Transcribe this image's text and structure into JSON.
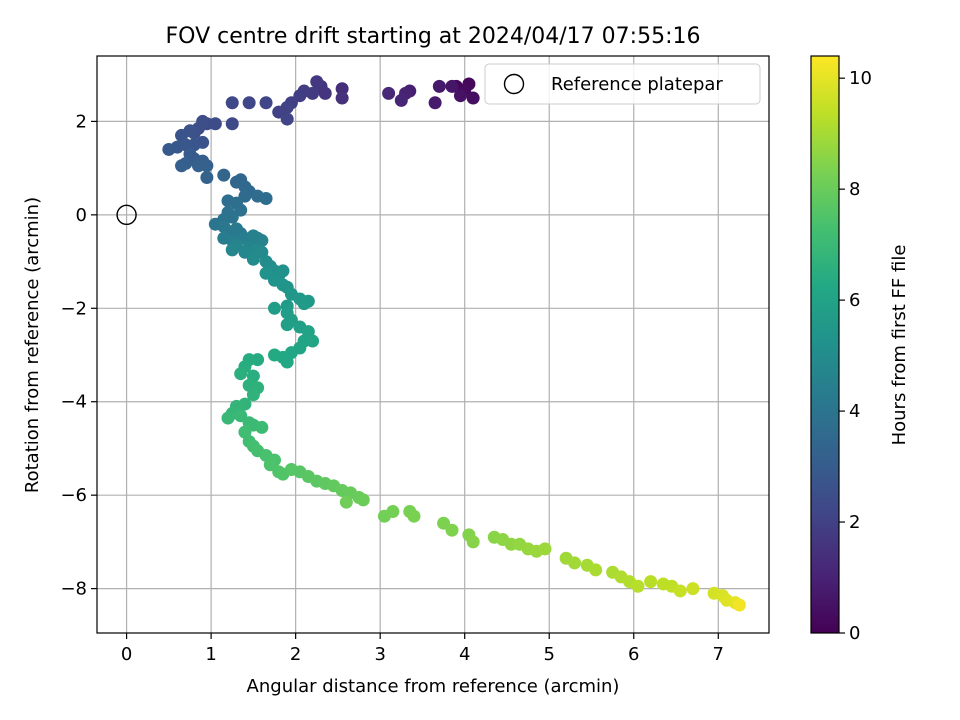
{
  "chart_data": {
    "type": "scatter",
    "title": "FOV centre drift starting at 2024/04/17 07:55:16",
    "xlabel": "Angular distance from reference (arcmin)",
    "ylabel": "Rotation from reference (arcmin)",
    "xlim": [
      -0.35,
      7.6
    ],
    "ylim": [
      -8.95,
      3.4
    ],
    "xticks": [
      0,
      1,
      2,
      3,
      4,
      5,
      6,
      7
    ],
    "yticks": [
      -8,
      -6,
      -4,
      -2,
      0,
      2
    ],
    "grid": true,
    "legend": {
      "placement": "top-right",
      "entries": [
        "Reference platepar"
      ]
    },
    "reference_point": {
      "x": 0,
      "y": 0,
      "marker": "open-circle"
    },
    "colorbar": {
      "label": "Hours from first FF file",
      "min": 0,
      "max": 10.4,
      "ticks": [
        0,
        2,
        4,
        6,
        8,
        10
      ],
      "colormap": "viridis"
    },
    "series": [
      {
        "points": [
          [
            3.9,
            2.75,
            0.1
          ],
          [
            4.05,
            2.8,
            0.2
          ],
          [
            4.0,
            2.65,
            0.3
          ],
          [
            4.1,
            2.5,
            0.4
          ],
          [
            3.95,
            2.55,
            0.5
          ],
          [
            3.85,
            2.75,
            0.6
          ],
          [
            3.7,
            2.75,
            0.7
          ],
          [
            3.65,
            2.4,
            0.8
          ],
          [
            3.35,
            2.65,
            0.9
          ],
          [
            3.3,
            2.6,
            1.0
          ],
          [
            3.25,
            2.45,
            1.1
          ],
          [
            3.1,
            2.6,
            1.2
          ],
          [
            2.55,
            2.7,
            1.35
          ],
          [
            2.55,
            2.5,
            1.45
          ],
          [
            2.35,
            2.6,
            1.55
          ],
          [
            2.3,
            2.75,
            1.6
          ],
          [
            2.25,
            2.85,
            1.7
          ],
          [
            2.2,
            2.6,
            1.8
          ],
          [
            2.1,
            2.65,
            1.85
          ],
          [
            2.05,
            2.55,
            1.9
          ],
          [
            1.95,
            2.4,
            1.95
          ],
          [
            1.9,
            2.3,
            2.0
          ],
          [
            1.8,
            2.2,
            2.05
          ],
          [
            1.9,
            2.05,
            2.1
          ],
          [
            1.65,
            2.4,
            2.15
          ],
          [
            1.45,
            2.4,
            2.2
          ],
          [
            1.25,
            2.4,
            2.25
          ],
          [
            1.25,
            1.95,
            2.3
          ],
          [
            1.05,
            1.95,
            2.35
          ],
          [
            0.95,
            1.95,
            2.4
          ],
          [
            0.9,
            2.0,
            2.45
          ],
          [
            0.85,
            1.85,
            2.5
          ],
          [
            0.8,
            1.75,
            2.55
          ],
          [
            0.75,
            1.8,
            2.6
          ],
          [
            0.65,
            1.7,
            2.65
          ],
          [
            0.9,
            1.55,
            2.7
          ],
          [
            0.8,
            1.5,
            2.75
          ],
          [
            0.7,
            1.5,
            2.8
          ],
          [
            0.6,
            1.45,
            2.85
          ],
          [
            0.5,
            1.4,
            2.9
          ],
          [
            0.75,
            1.3,
            2.95
          ],
          [
            0.8,
            1.2,
            3.0
          ],
          [
            0.9,
            1.15,
            3.05
          ],
          [
            0.7,
            1.1,
            3.1
          ],
          [
            0.65,
            1.05,
            3.15
          ],
          [
            0.85,
            1.05,
            3.2
          ],
          [
            0.95,
            1.05,
            3.25
          ],
          [
            0.95,
            0.8,
            3.3
          ],
          [
            1.15,
            0.85,
            3.35
          ],
          [
            1.3,
            0.7,
            3.4
          ],
          [
            1.35,
            0.75,
            3.45
          ],
          [
            1.4,
            0.6,
            3.5
          ],
          [
            1.45,
            0.5,
            3.55
          ],
          [
            1.4,
            0.4,
            3.6
          ],
          [
            1.55,
            0.4,
            3.65
          ],
          [
            1.65,
            0.35,
            3.7
          ],
          [
            1.2,
            0.3,
            3.75
          ],
          [
            1.3,
            0.25,
            3.8
          ],
          [
            1.35,
            0.1,
            3.85
          ],
          [
            1.2,
            0.05,
            3.9
          ],
          [
            1.25,
            -0.05,
            3.95
          ],
          [
            1.15,
            -0.1,
            4.0
          ],
          [
            1.05,
            -0.2,
            4.05
          ],
          [
            1.15,
            -0.25,
            4.1
          ],
          [
            1.2,
            -0.35,
            4.15
          ],
          [
            1.3,
            -0.3,
            4.2
          ],
          [
            1.35,
            -0.4,
            4.25
          ],
          [
            1.15,
            -0.5,
            4.3
          ],
          [
            1.25,
            -0.55,
            4.35
          ],
          [
            1.4,
            -0.5,
            4.4
          ],
          [
            1.45,
            -0.55,
            4.45
          ],
          [
            1.5,
            -0.45,
            4.5
          ],
          [
            1.55,
            -0.5,
            4.55
          ],
          [
            1.6,
            -0.55,
            4.6
          ],
          [
            1.3,
            -0.65,
            4.65
          ],
          [
            1.45,
            -0.7,
            4.7
          ],
          [
            1.25,
            -0.75,
            4.75
          ],
          [
            1.4,
            -0.8,
            4.8
          ],
          [
            1.55,
            -0.75,
            4.85
          ],
          [
            1.6,
            -0.8,
            4.9
          ],
          [
            1.5,
            -0.95,
            4.95
          ],
          [
            1.65,
            -1.0,
            5.0
          ],
          [
            1.7,
            -1.1,
            5.05
          ],
          [
            1.75,
            -1.2,
            5.1
          ],
          [
            1.8,
            -1.3,
            5.15
          ],
          [
            1.85,
            -1.2,
            5.2
          ],
          [
            1.65,
            -1.25,
            5.25
          ],
          [
            1.75,
            -1.4,
            5.3
          ],
          [
            1.85,
            -1.5,
            5.35
          ],
          [
            1.9,
            -1.55,
            5.4
          ],
          [
            1.95,
            -1.7,
            5.45
          ],
          [
            2.05,
            -1.8,
            5.5
          ],
          [
            2.15,
            -1.85,
            5.55
          ],
          [
            2.1,
            -1.9,
            5.6
          ],
          [
            1.9,
            -1.95,
            5.65
          ],
          [
            1.75,
            -2.0,
            5.7
          ],
          [
            1.9,
            -2.1,
            5.75
          ],
          [
            1.95,
            -2.25,
            5.8
          ],
          [
            2.05,
            -2.4,
            5.85
          ],
          [
            1.9,
            -2.35,
            5.9
          ],
          [
            2.15,
            -2.5,
            5.95
          ],
          [
            2.1,
            -2.7,
            6.0
          ],
          [
            2.2,
            -2.7,
            6.05
          ],
          [
            2.05,
            -2.85,
            6.1
          ],
          [
            1.95,
            -2.95,
            6.15
          ],
          [
            1.85,
            -3.05,
            6.2
          ],
          [
            1.9,
            -3.15,
            6.25
          ],
          [
            1.75,
            -3.0,
            6.3
          ],
          [
            1.55,
            -3.1,
            6.35
          ],
          [
            1.45,
            -3.1,
            6.4
          ],
          [
            1.4,
            -3.25,
            6.45
          ],
          [
            1.5,
            -3.45,
            6.5
          ],
          [
            1.35,
            -3.4,
            6.55
          ],
          [
            1.45,
            -3.65,
            6.6
          ],
          [
            1.55,
            -3.7,
            6.65
          ],
          [
            1.5,
            -3.85,
            6.7
          ],
          [
            1.4,
            -4.05,
            6.75
          ],
          [
            1.3,
            -4.1,
            6.8
          ],
          [
            1.25,
            -4.25,
            6.85
          ],
          [
            1.2,
            -4.35,
            6.9
          ],
          [
            1.35,
            -4.3,
            6.95
          ],
          [
            1.45,
            -4.45,
            7.0
          ],
          [
            1.5,
            -4.5,
            7.05
          ],
          [
            1.6,
            -4.55,
            7.1
          ],
          [
            1.4,
            -4.65,
            7.15
          ],
          [
            1.45,
            -4.85,
            7.2
          ],
          [
            1.5,
            -4.95,
            7.25
          ],
          [
            1.55,
            -5.05,
            7.3
          ],
          [
            1.65,
            -5.15,
            7.35
          ],
          [
            1.75,
            -5.25,
            7.4
          ],
          [
            1.7,
            -5.35,
            7.45
          ],
          [
            1.8,
            -5.5,
            7.5
          ],
          [
            1.85,
            -5.55,
            7.55
          ],
          [
            1.95,
            -5.45,
            7.6
          ],
          [
            2.05,
            -5.5,
            7.65
          ],
          [
            2.15,
            -5.6,
            7.7
          ],
          [
            2.25,
            -5.7,
            7.75
          ],
          [
            2.35,
            -5.75,
            7.8
          ],
          [
            2.45,
            -5.8,
            7.85
          ],
          [
            2.55,
            -5.9,
            7.9
          ],
          [
            2.65,
            -5.95,
            7.95
          ],
          [
            2.75,
            -6.05,
            8.0
          ],
          [
            2.8,
            -6.1,
            8.05
          ],
          [
            2.6,
            -6.15,
            8.1
          ],
          [
            3.05,
            -6.45,
            8.15
          ],
          [
            3.15,
            -6.35,
            8.2
          ],
          [
            3.35,
            -6.35,
            8.25
          ],
          [
            3.4,
            -6.45,
            8.3
          ],
          [
            3.75,
            -6.6,
            8.35
          ],
          [
            3.85,
            -6.75,
            8.4
          ],
          [
            4.05,
            -6.85,
            8.45
          ],
          [
            4.1,
            -7.0,
            8.5
          ],
          [
            4.35,
            -6.9,
            8.55
          ],
          [
            4.45,
            -6.95,
            8.6
          ],
          [
            4.55,
            -7.05,
            8.65
          ],
          [
            4.65,
            -7.05,
            8.7
          ],
          [
            4.75,
            -7.15,
            8.75
          ],
          [
            4.85,
            -7.2,
            8.8
          ],
          [
            4.95,
            -7.15,
            8.85
          ],
          [
            5.2,
            -7.35,
            8.9
          ],
          [
            5.3,
            -7.45,
            8.95
          ],
          [
            5.45,
            -7.5,
            9.0
          ],
          [
            5.55,
            -7.6,
            9.05
          ],
          [
            5.75,
            -7.65,
            9.1
          ],
          [
            5.85,
            -7.75,
            9.15
          ],
          [
            5.95,
            -7.85,
            9.2
          ],
          [
            6.05,
            -7.95,
            9.25
          ],
          [
            6.2,
            -7.85,
            9.3
          ],
          [
            6.35,
            -7.9,
            9.35
          ],
          [
            6.45,
            -7.95,
            9.4
          ],
          [
            6.55,
            -8.05,
            9.5
          ],
          [
            6.7,
            -8.0,
            9.6
          ],
          [
            6.95,
            -8.1,
            9.7
          ],
          [
            7.05,
            -8.15,
            9.8
          ],
          [
            7.1,
            -8.25,
            9.9
          ],
          [
            7.2,
            -8.3,
            10.0
          ],
          [
            7.25,
            -8.35,
            10.2
          ]
        ]
      }
    ]
  },
  "colors": {
    "grid": "#b0b0b0",
    "reference_marker": "#000000"
  }
}
